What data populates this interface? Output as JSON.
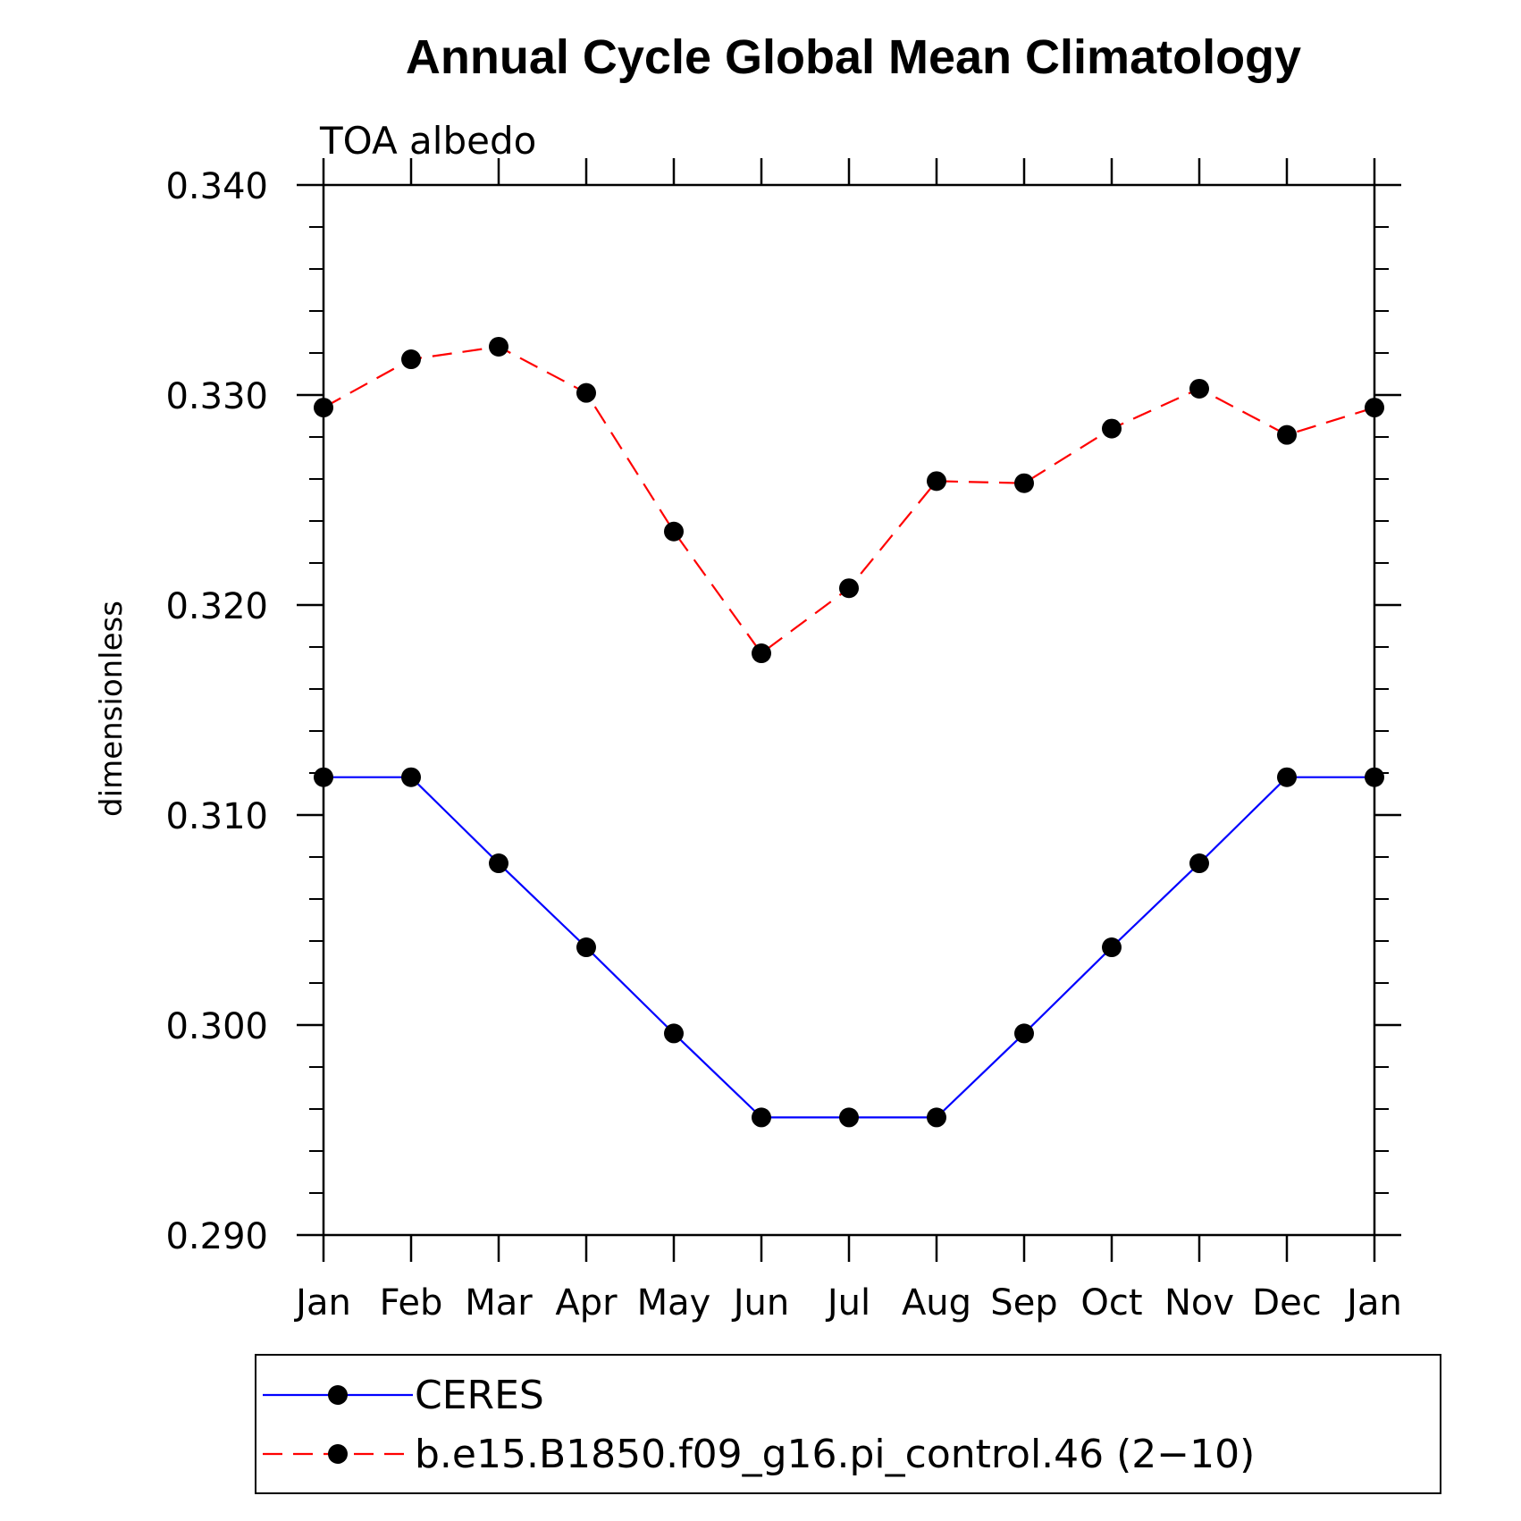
{
  "chart_data": {
    "type": "line",
    "title": "Annual Cycle Global Mean Climatology",
    "subtitle": "TOA albedo",
    "xlabel": "",
    "ylabel": "dimensionless",
    "categories": [
      "Jan",
      "Feb",
      "Mar",
      "Apr",
      "May",
      "Jun",
      "Jul",
      "Aug",
      "Sep",
      "Oct",
      "Nov",
      "Dec",
      "Jan"
    ],
    "ylim": [
      0.29,
      0.34
    ],
    "yticks": [
      "0.290",
      "0.300",
      "0.310",
      "0.320",
      "0.330",
      "0.340"
    ],
    "ytick_values": [
      0.29,
      0.3,
      0.31,
      0.32,
      0.33,
      0.34
    ],
    "y_minor_step": 0.002,
    "series": [
      {
        "name": "CERES",
        "color": "#0000ff",
        "dash": "solid",
        "marker": "filled-circle",
        "values": [
          0.3118,
          0.3118,
          0.3077,
          0.3037,
          0.2996,
          0.2956,
          0.2956,
          0.2956,
          0.2996,
          0.3037,
          0.3077,
          0.3118,
          0.3118
        ]
      },
      {
        "name": "b.e15.B1850.f09_g16.pi_control.46 (2−10)",
        "color": "#ff0000",
        "dash": "dashed",
        "marker": "filled-circle",
        "values": [
          0.3294,
          0.3317,
          0.3323,
          0.3301,
          0.3235,
          0.3177,
          0.3208,
          0.3259,
          0.3258,
          0.3284,
          0.3303,
          0.3281,
          0.3294
        ]
      }
    ],
    "legend_position": "bottom",
    "grid": false
  }
}
